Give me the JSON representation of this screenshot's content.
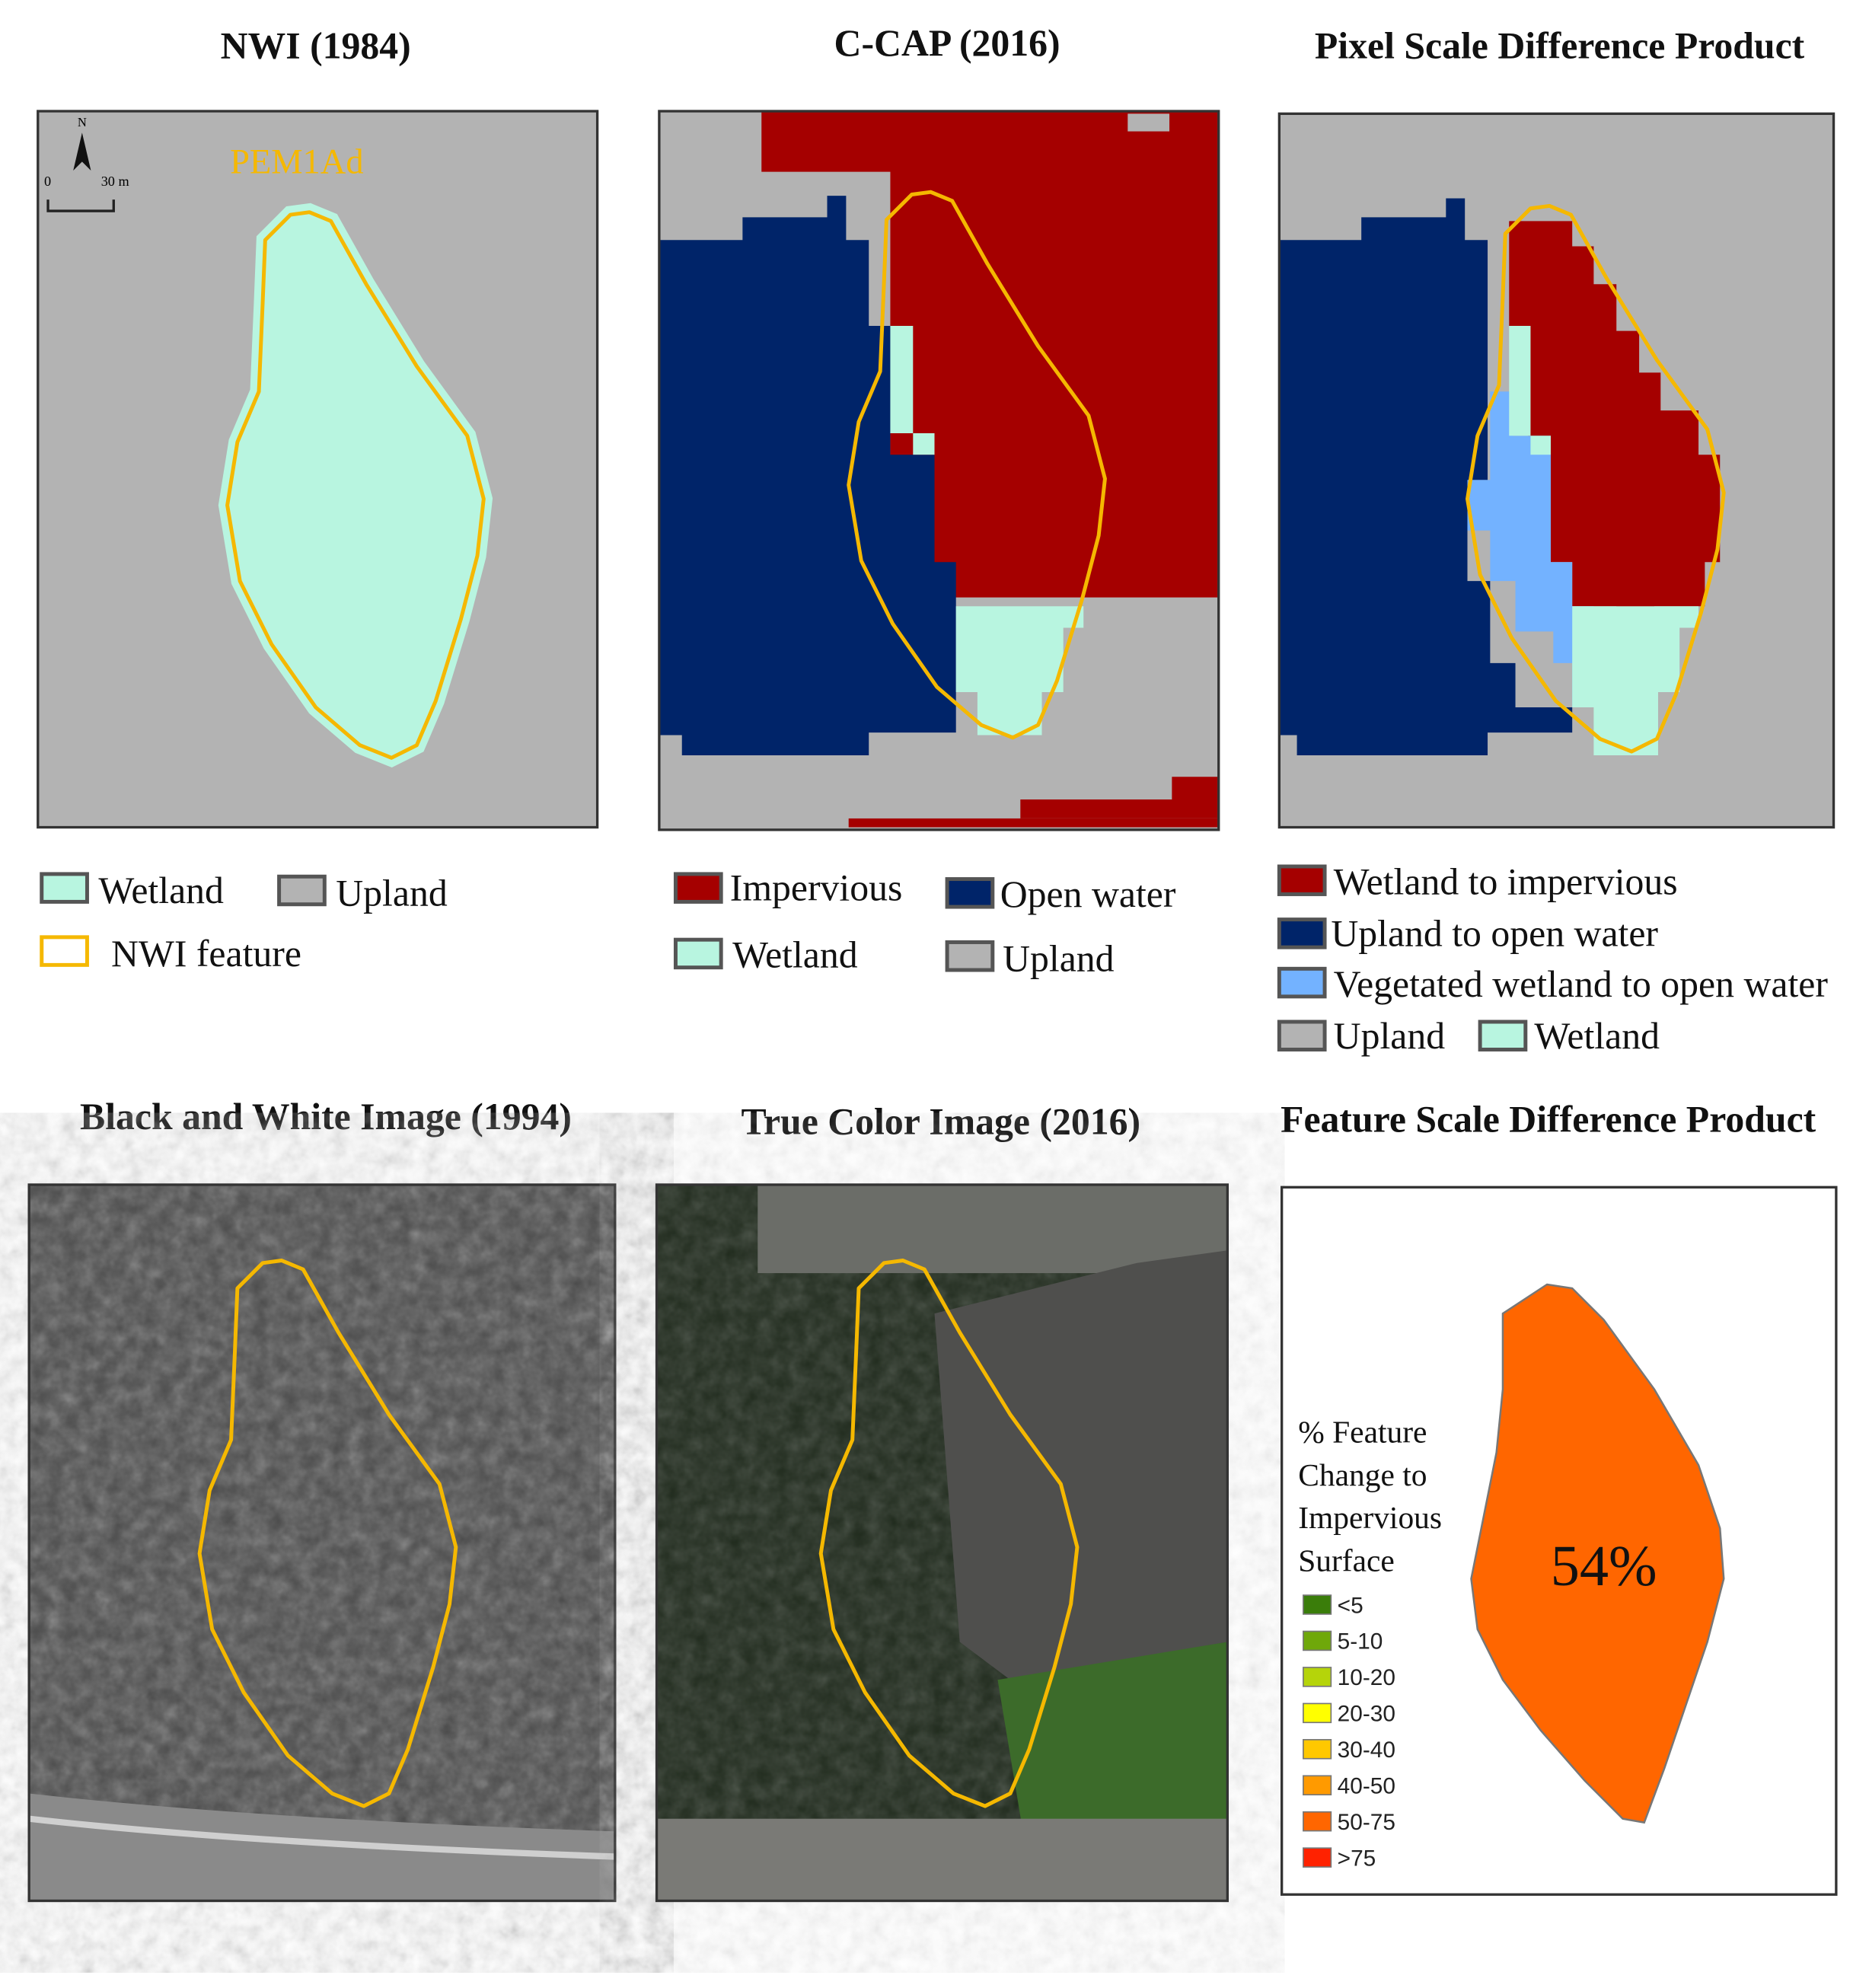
{
  "panels": {
    "nwi": {
      "title": "NWI (1984)",
      "feature_label": "PEM1Ad",
      "north": "N",
      "scale_zero": "0",
      "scale_dist": "30 m",
      "legend": {
        "wetland": "Wetland",
        "upland": "Upland",
        "feature": "NWI feature"
      }
    },
    "ccap": {
      "title": "C-CAP (2016)",
      "legend": {
        "impervious": "Impervious",
        "open_water": "Open water",
        "wetland": "Wetland",
        "upland": "Upland"
      }
    },
    "pixel_diff": {
      "title": "Pixel Scale Difference Product",
      "legend": {
        "wet_imp": "Wetland to impervious",
        "up_water": "Upland to open water",
        "veg_water": "Vegetated wetland to open water",
        "upland": "Upland",
        "wetland": "Wetland"
      }
    },
    "bw": {
      "title": "Black and White Image (1994)"
    },
    "true_color": {
      "title": "True Color Image (2016)"
    },
    "feature_diff": {
      "title": "Feature Scale Difference Product",
      "value_label": "54%",
      "legend_title": [
        "% Feature",
        "Change to",
        "Impervious",
        "Surface"
      ],
      "classes": [
        {
          "label": "<5",
          "color": "#3a7d0a"
        },
        {
          "label": "5-10",
          "color": "#6fa80a"
        },
        {
          "label": "10-20",
          "color": "#b5d40a"
        },
        {
          "label": "20-30",
          "color": "#ffff00"
        },
        {
          "label": "30-40",
          "color": "#ffc800"
        },
        {
          "label": "40-50",
          "color": "#ff9a00"
        },
        {
          "label": "50-75",
          "color": "#ff6600"
        },
        {
          "label": ">75",
          "color": "#ff2200"
        }
      ]
    }
  },
  "colors": {
    "upland": "#b3b3b3",
    "wetland": "#b8f5e0",
    "impervious": "#a50000",
    "open_water": "#002469",
    "veg_water": "#73b2ff",
    "nwi_outline": "#f5b800",
    "feature_fill": "#ff6600"
  }
}
